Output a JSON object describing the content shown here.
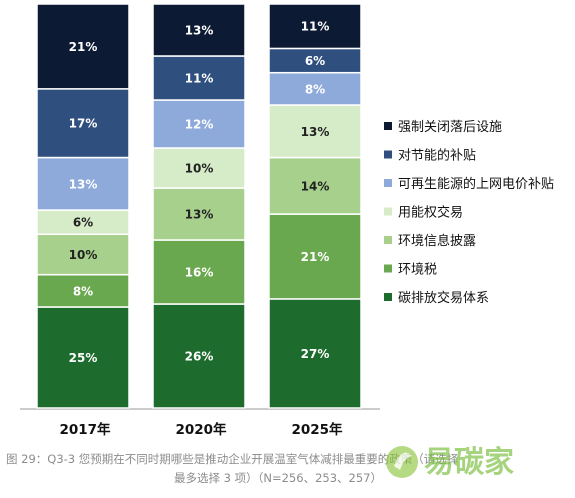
{
  "chart_data": {
    "type": "bar",
    "stacked": true,
    "normalized": true,
    "categories": [
      "2017年",
      "2020年",
      "2025年"
    ],
    "series": [
      {
        "name": "碳排放交易体系",
        "color": "#1e6b2e",
        "values": [
          25,
          26,
          27
        ]
      },
      {
        "name": "环境税",
        "color": "#6aa84f",
        "values": [
          8,
          16,
          21
        ]
      },
      {
        "name": "环境信息披露",
        "color": "#a8d08d",
        "values": [
          10,
          13,
          14
        ]
      },
      {
        "name": "用能权交易",
        "color": "#d6ebc7",
        "values": [
          6,
          10,
          13
        ]
      },
      {
        "name": "可再生能源的上网电价补贴",
        "color": "#8eaadb",
        "values": [
          13,
          12,
          8
        ]
      },
      {
        "name": "对节能的补贴",
        "color": "#2f4f7f",
        "values": [
          17,
          11,
          6
        ]
      },
      {
        "name": "强制关闭落后设施",
        "color": "#0d1a33",
        "values": [
          21,
          13,
          11
        ]
      }
    ],
    "value_suffix": "%",
    "legend_position": "right",
    "grid": false
  },
  "caption": {
    "line1": "图 29：Q3-3 您预期在不同时期哪些是推动企业开展温室气体减排最重要的政策（请选择",
    "line2": "最多选择 3 项）（N=256、253、257）"
  },
  "watermark_text": "易碳家",
  "colors": {
    "label_light": "#ffffff",
    "label_dark": "#222222",
    "axis": "#9a9a9a"
  }
}
